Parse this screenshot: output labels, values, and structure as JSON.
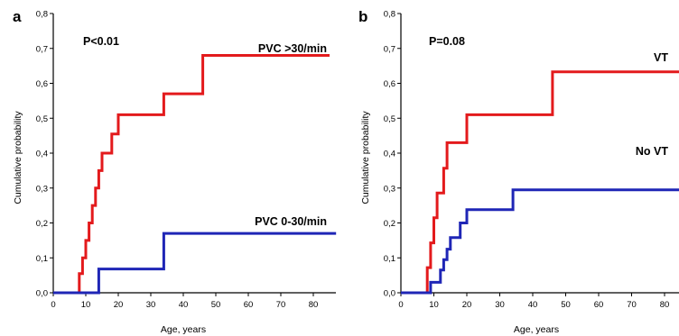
{
  "chart_data": [
    {
      "type": "line",
      "step": true,
      "panel_label": "a",
      "p_value": "P<0.01",
      "xlabel": "Age, years",
      "ylabel": "Cumulative probability",
      "xlim": [
        0,
        87
      ],
      "ylim": [
        0,
        0.8
      ],
      "xticks": [
        0,
        10,
        20,
        30,
        40,
        50,
        60,
        70,
        80
      ],
      "yticks": [
        "0,0",
        "0,1",
        "0,2",
        "0,3",
        "0,4",
        "0,5",
        "0,6",
        "0,7",
        "0,8"
      ],
      "grid": false,
      "series": [
        {
          "name": "PVC >30/min",
          "color": "#e31a1c",
          "x": [
            0,
            8,
            9,
            10,
            11,
            12,
            13,
            14,
            15,
            17,
            18,
            20,
            33,
            34,
            46,
            85
          ],
          "y": [
            0,
            0.055,
            0.1,
            0.15,
            0.2,
            0.25,
            0.3,
            0.35,
            0.4,
            0.4,
            0.455,
            0.51,
            0.51,
            0.57,
            0.68,
            0.68
          ]
        },
        {
          "name": "PVC 0-30/min",
          "color": "#1f26b6",
          "x": [
            0,
            14,
            34,
            87
          ],
          "y": [
            0,
            0.068,
            0.17,
            0.17
          ]
        }
      ]
    },
    {
      "type": "line",
      "step": true,
      "panel_label": "b",
      "p_value": "P=0.08",
      "xlabel": "Age, years",
      "ylabel": "Cumulative probability",
      "xlim": [
        0,
        87
      ],
      "ylim": [
        0,
        0.8
      ],
      "xticks": [
        0,
        10,
        20,
        30,
        40,
        50,
        60,
        70,
        80
      ],
      "yticks": [
        "0,0",
        "0,1",
        "0,2",
        "0,3",
        "0,4",
        "0,5",
        "0,6",
        "0,7",
        "0,8"
      ],
      "grid": false,
      "series": [
        {
          "name": "VT",
          "color": "#e31a1c",
          "x": [
            0,
            8,
            9,
            10,
            11,
            13,
            14,
            15,
            19,
            20,
            46,
            87
          ],
          "y": [
            0,
            0.072,
            0.143,
            0.215,
            0.286,
            0.357,
            0.43,
            0.43,
            0.43,
            0.51,
            0.633,
            0.633
          ]
        },
        {
          "name": "No VT",
          "color": "#1f26b6",
          "x": [
            0,
            9,
            12,
            13,
            14,
            15,
            17,
            18,
            20,
            33,
            34,
            87
          ],
          "y": [
            0,
            0.03,
            0.065,
            0.095,
            0.125,
            0.158,
            0.158,
            0.2,
            0.238,
            0.238,
            0.295,
            0.357
          ]
        }
      ]
    }
  ]
}
